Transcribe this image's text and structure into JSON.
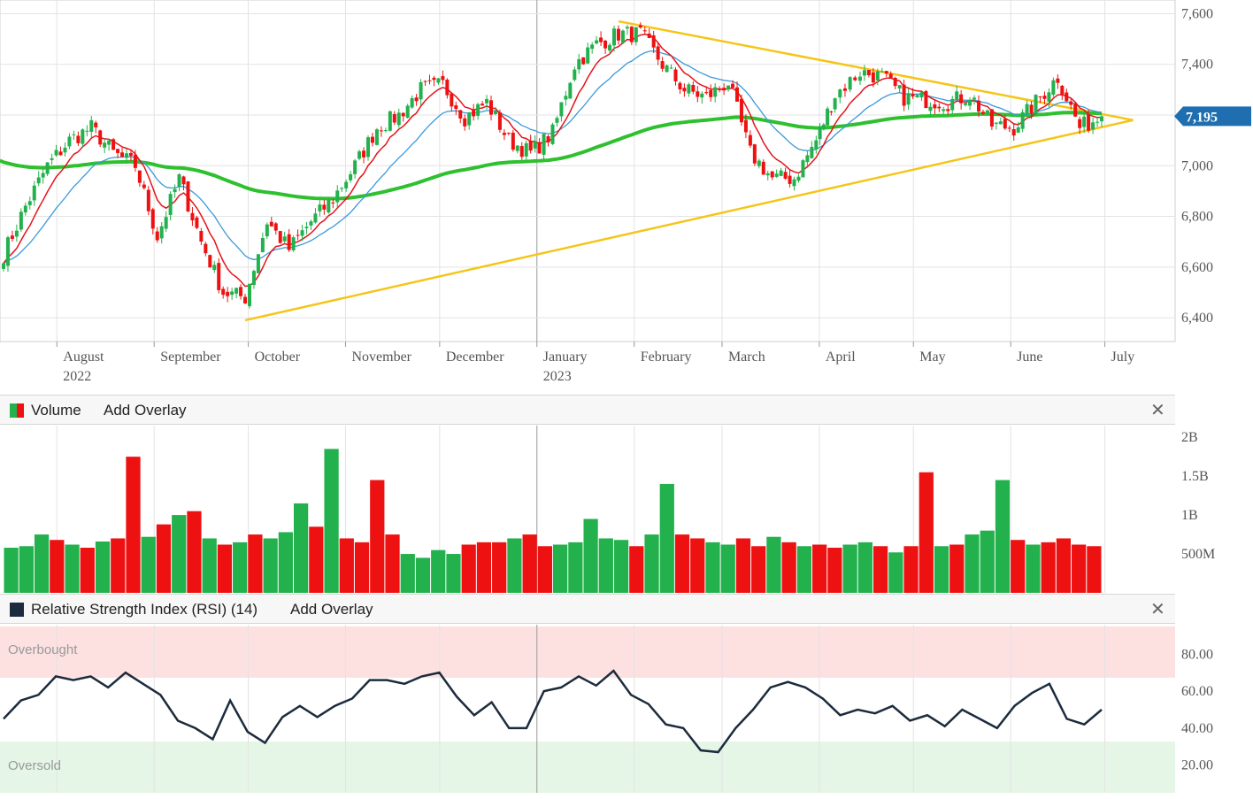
{
  "colors": {
    "up": "#22b14c",
    "down": "#ee1111",
    "ema_fast": "#e4141b",
    "ema_slow": "#3a9ad9",
    "sma_long": "#2ec02e",
    "trend": "#f5c518",
    "price_badge": "#1f6fb0",
    "rsi_line": "#1c2b3d",
    "overbought_band": "#fde1e1",
    "oversold_band": "#e5f6e7",
    "grid": "#e3e3e3"
  },
  "price_panel": {
    "y_ticks": [
      "7,600",
      "7,400",
      "7,200",
      "7,000",
      "6,800",
      "6,600",
      "6,400"
    ],
    "last_price_label": "7,195",
    "months": [
      {
        "label": "August",
        "year": "2022"
      },
      {
        "label": "September",
        "year": ""
      },
      {
        "label": "October",
        "year": ""
      },
      {
        "label": "November",
        "year": ""
      },
      {
        "label": "December",
        "year": ""
      },
      {
        "label": "January",
        "year": "2023"
      },
      {
        "label": "February",
        "year": ""
      },
      {
        "label": "March",
        "year": ""
      },
      {
        "label": "April",
        "year": ""
      },
      {
        "label": "May",
        "year": ""
      },
      {
        "label": "June",
        "year": ""
      },
      {
        "label": "July",
        "year": ""
      }
    ]
  },
  "volume_panel": {
    "title": "Volume",
    "add_overlay": "Add Overlay",
    "close_icon": "close-icon",
    "y_ticks": [
      "2B",
      "1.5B",
      "1B",
      "500M"
    ]
  },
  "rsi_panel": {
    "title": "Relative Strength Index (RSI) (14)",
    "add_overlay": "Add Overlay",
    "close_icon": "close-icon",
    "y_ticks": [
      "80.00",
      "60.00",
      "40.00",
      "20.00"
    ],
    "overbought_label": "Overbought",
    "oversold_label": "Oversold"
  },
  "chart_data": [
    {
      "type": "line",
      "ylim": [
        6320,
        7640
      ],
      "x": [
        "2022-07-15",
        "2022-07-22",
        "2022-07-29",
        "2022-08-05",
        "2022-08-12",
        "2022-08-19",
        "2022-08-26",
        "2022-09-02",
        "2022-09-09",
        "2022-09-16",
        "2022-09-23",
        "2022-09-30",
        "2022-10-07",
        "2022-10-14",
        "2022-10-21",
        "2022-10-28",
        "2022-11-04",
        "2022-11-11",
        "2022-11-18",
        "2022-11-25",
        "2022-12-02",
        "2022-12-09",
        "2022-12-16",
        "2022-12-23",
        "2022-12-30",
        "2023-01-06",
        "2023-01-13",
        "2023-01-20",
        "2023-01-27",
        "2023-02-03",
        "2023-02-10",
        "2023-02-17",
        "2023-02-24",
        "2023-03-03",
        "2023-03-10",
        "2023-03-17",
        "2023-03-24",
        "2023-03-31",
        "2023-04-06",
        "2023-04-14",
        "2023-04-21",
        "2023-04-28",
        "2023-05-05",
        "2023-05-12",
        "2023-05-19",
        "2023-05-26",
        "2023-06-02",
        "2023-06-09",
        "2023-06-16",
        "2023-06-23",
        "2023-06-30"
      ],
      "series": [
        {
          "values": [
            6650,
            6840,
            7000,
            7100,
            7150,
            7050,
            7000,
            6720,
            6950,
            6700,
            6500,
            6480,
            6780,
            6670,
            6780,
            6870,
            7000,
            7150,
            7200,
            7300,
            7320,
            7190,
            7250,
            7100,
            7050,
            7130,
            7400,
            7480,
            7520,
            7520,
            7400,
            7300,
            7270,
            7330,
            7050,
            6950,
            6950,
            7100,
            7280,
            7370,
            7350,
            7270,
            7260,
            7250,
            7280,
            7160,
            7150,
            7250,
            7350,
            7150,
            7195
          ]
        }
      ],
      "trend_lines": [
        {
          "from": [
            "2022-09-30",
            6390
          ],
          "to": [
            "2023-07-10",
            7180
          ]
        },
        {
          "from": [
            "2023-01-27",
            7570
          ],
          "to": [
            "2023-07-10",
            7180
          ]
        }
      ]
    },
    {
      "type": "bar",
      "ylim": [
        0,
        2.15
      ],
      "values": [
        0.58,
        0.6,
        0.75,
        0.68,
        0.62,
        0.58,
        0.66,
        0.7,
        1.75,
        0.72,
        0.88,
        1.0,
        1.05,
        0.7,
        0.62,
        0.65,
        0.75,
        0.7,
        0.78,
        1.15,
        0.85,
        1.85,
        0.7,
        0.65,
        1.45,
        0.75,
        0.5,
        0.45,
        0.55,
        0.5,
        0.62,
        0.65,
        0.65,
        0.7,
        0.75,
        0.6,
        0.62,
        0.65,
        0.95,
        0.7,
        0.68,
        0.6,
        0.75,
        1.4,
        0.75,
        0.7,
        0.65,
        0.62,
        0.7,
        0.6,
        0.72,
        0.65,
        0.6,
        0.62,
        0.58,
        0.62,
        0.65,
        0.6,
        0.52,
        0.6,
        1.55,
        0.6,
        0.62,
        0.75,
        0.8,
        1.45,
        0.68,
        0.62,
        0.65,
        0.7,
        0.62,
        0.6
      ],
      "up": [
        true,
        true,
        true,
        false,
        true,
        false,
        true,
        false,
        false,
        true,
        false,
        true,
        false,
        true,
        false,
        true,
        false,
        true,
        true,
        true,
        false,
        true,
        false,
        false,
        false,
        false,
        true,
        true,
        true,
        true,
        false,
        false,
        false,
        true,
        false,
        false,
        true,
        true,
        true,
        true,
        true,
        false,
        true,
        true,
        false,
        false,
        true,
        true,
        false,
        false,
        true,
        false,
        true,
        false,
        false,
        true,
        true,
        false,
        true,
        false,
        false,
        true,
        false,
        true,
        true,
        true,
        false,
        true,
        false,
        false,
        false,
        false
      ]
    },
    {
      "type": "line",
      "ylim": [
        0,
        100
      ],
      "reference_bands": {
        "overbought": 70,
        "oversold": 30
      },
      "values": [
        45,
        55,
        58,
        68,
        66,
        68,
        62,
        70,
        64,
        58,
        44,
        40,
        34,
        55,
        38,
        32,
        46,
        52,
        46,
        52,
        56,
        66,
        66,
        64,
        68,
        70,
        57,
        47,
        54,
        40,
        40,
        60,
        62,
        68,
        63,
        71,
        58,
        53,
        42,
        40,
        28,
        27,
        40,
        50,
        62,
        65,
        62,
        56,
        47,
        50,
        48,
        52,
        44,
        47,
        41,
        50,
        45,
        40,
        52,
        59,
        64,
        45,
        42,
        50
      ]
    }
  ]
}
